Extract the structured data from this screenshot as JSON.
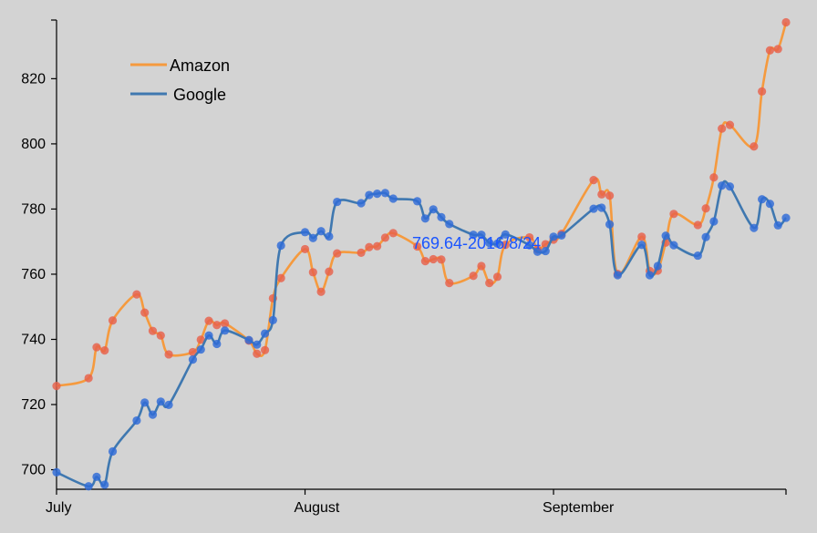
{
  "chart_data": {
    "type": "line",
    "x_unit": "date",
    "x_range": [
      "2016-07-01",
      "2016-09-30"
    ],
    "ylim": [
      694,
      838
    ],
    "y_ticks": [
      700,
      720,
      740,
      760,
      780,
      800,
      820
    ],
    "x_ticks": [
      {
        "label": "July",
        "date": "2016-07-01"
      },
      {
        "label": "August",
        "date": "2016-08-01"
      },
      {
        "label": "September",
        "date": "2016-09-01"
      },
      {
        "label": "",
        "date": "2016-09-30"
      }
    ],
    "grid": false,
    "legend_position": "top-left",
    "series": [
      {
        "name": "Amazon",
        "line_color": "#f59a3e",
        "point_color": "#e8604a",
        "points": [
          [
            "2016-07-01",
            725.7
          ],
          [
            "2016-07-05",
            728.1
          ],
          [
            "2016-07-06",
            737.6
          ],
          [
            "2016-07-07",
            736.6
          ],
          [
            "2016-07-08",
            745.8
          ],
          [
            "2016-07-11",
            753.8
          ],
          [
            "2016-07-12",
            748.2
          ],
          [
            "2016-07-13",
            742.6
          ],
          [
            "2016-07-14",
            741.2
          ],
          [
            "2016-07-15",
            735.4
          ],
          [
            "2016-07-18",
            736.1
          ],
          [
            "2016-07-19",
            739.9
          ],
          [
            "2016-07-20",
            745.7
          ],
          [
            "2016-07-21",
            744.4
          ],
          [
            "2016-07-22",
            744.9
          ],
          [
            "2016-07-25",
            739.6
          ],
          [
            "2016-07-26",
            735.6
          ],
          [
            "2016-07-27",
            736.7
          ],
          [
            "2016-07-28",
            752.6
          ],
          [
            "2016-07-29",
            758.8
          ],
          [
            "2016-08-01",
            767.7
          ],
          [
            "2016-08-02",
            760.6
          ],
          [
            "2016-08-03",
            754.6
          ],
          [
            "2016-08-04",
            760.8
          ],
          [
            "2016-08-05",
            766.4
          ],
          [
            "2016-08-08",
            766.6
          ],
          [
            "2016-08-09",
            768.3
          ],
          [
            "2016-08-10",
            768.6
          ],
          [
            "2016-08-11",
            771.2
          ],
          [
            "2016-08-12",
            772.6
          ],
          [
            "2016-08-15",
            768.5
          ],
          [
            "2016-08-16",
            764.0
          ],
          [
            "2016-08-17",
            764.6
          ],
          [
            "2016-08-18",
            764.5
          ],
          [
            "2016-08-19",
            757.3
          ],
          [
            "2016-08-22",
            759.5
          ],
          [
            "2016-08-23",
            762.5
          ],
          [
            "2016-08-24",
            757.3
          ],
          [
            "2016-08-25",
            759.2
          ],
          [
            "2016-08-26",
            769.0
          ],
          [
            "2016-08-29",
            771.3
          ],
          [
            "2016-08-30",
            767.6
          ],
          [
            "2016-08-31",
            769.2
          ],
          [
            "2016-09-01",
            770.6
          ],
          [
            "2016-09-02",
            772.4
          ],
          [
            "2016-09-06",
            788.9
          ],
          [
            "2016-09-07",
            784.5
          ],
          [
            "2016-09-08",
            784.1
          ],
          [
            "2016-09-09",
            760.1
          ],
          [
            "2016-09-12",
            771.5
          ],
          [
            "2016-09-13",
            761.0
          ],
          [
            "2016-09-14",
            761.1
          ],
          [
            "2016-09-15",
            769.7
          ],
          [
            "2016-09-16",
            778.5
          ],
          [
            "2016-09-19",
            775.1
          ],
          [
            "2016-09-20",
            780.2
          ],
          [
            "2016-09-21",
            789.7
          ],
          [
            "2016-09-22",
            804.7
          ],
          [
            "2016-09-23",
            805.8
          ],
          [
            "2016-09-26",
            799.2
          ],
          [
            "2016-09-27",
            816.1
          ],
          [
            "2016-09-28",
            828.7
          ],
          [
            "2016-09-29",
            829.1
          ],
          [
            "2016-09-30",
            837.3
          ]
        ]
      },
      {
        "name": "Google",
        "line_color": "#3f78b0",
        "point_color": "#2f6bd8",
        "points": [
          [
            "2016-07-01",
            699.2
          ],
          [
            "2016-07-05",
            694.9
          ],
          [
            "2016-07-06",
            697.8
          ],
          [
            "2016-07-07",
            695.4
          ],
          [
            "2016-07-08",
            705.6
          ],
          [
            "2016-07-11",
            715.1
          ],
          [
            "2016-07-12",
            720.6
          ],
          [
            "2016-07-13",
            716.9
          ],
          [
            "2016-07-14",
            720.9
          ],
          [
            "2016-07-15",
            719.9
          ],
          [
            "2016-07-18",
            733.8
          ],
          [
            "2016-07-19",
            736.9
          ],
          [
            "2016-07-20",
            741.2
          ],
          [
            "2016-07-21",
            738.6
          ],
          [
            "2016-07-22",
            742.7
          ],
          [
            "2016-07-25",
            739.8
          ],
          [
            "2016-07-26",
            738.4
          ],
          [
            "2016-07-27",
            741.8
          ],
          [
            "2016-07-28",
            745.9
          ],
          [
            "2016-07-29",
            768.8
          ],
          [
            "2016-08-01",
            772.9
          ],
          [
            "2016-08-02",
            771.1
          ],
          [
            "2016-08-03",
            773.2
          ],
          [
            "2016-08-04",
            771.6
          ],
          [
            "2016-08-05",
            782.2
          ],
          [
            "2016-08-08",
            781.8
          ],
          [
            "2016-08-09",
            784.3
          ],
          [
            "2016-08-10",
            784.7
          ],
          [
            "2016-08-11",
            784.9
          ],
          [
            "2016-08-12",
            783.2
          ],
          [
            "2016-08-15",
            782.4
          ],
          [
            "2016-08-16",
            777.1
          ],
          [
            "2016-08-17",
            779.9
          ],
          [
            "2016-08-18",
            777.5
          ],
          [
            "2016-08-19",
            775.4
          ],
          [
            "2016-08-22",
            772.1
          ],
          [
            "2016-08-23",
            772.1
          ],
          [
            "2016-08-24",
            769.6
          ],
          [
            "2016-08-25",
            769.4
          ],
          [
            "2016-08-26",
            772.2
          ],
          [
            "2016-08-29",
            768.9
          ],
          [
            "2016-08-30",
            766.9
          ],
          [
            "2016-08-31",
            767.1
          ],
          [
            "2016-09-01",
            771.5
          ],
          [
            "2016-09-02",
            771.9
          ],
          [
            "2016-09-06",
            780.1
          ],
          [
            "2016-09-07",
            780.4
          ],
          [
            "2016-09-08",
            775.3
          ],
          [
            "2016-09-09",
            759.7
          ],
          [
            "2016-09-12",
            769.0
          ],
          [
            "2016-09-13",
            759.7
          ],
          [
            "2016-09-14",
            762.5
          ],
          [
            "2016-09-15",
            771.8
          ],
          [
            "2016-09-16",
            768.9
          ],
          [
            "2016-09-19",
            765.7
          ],
          [
            "2016-09-20",
            771.4
          ],
          [
            "2016-09-21",
            776.2
          ],
          [
            "2016-09-22",
            787.2
          ],
          [
            "2016-09-23",
            786.9
          ],
          [
            "2016-09-26",
            774.2
          ],
          [
            "2016-09-27",
            783.0
          ],
          [
            "2016-09-28",
            781.6
          ],
          [
            "2016-09-29",
            775.0
          ],
          [
            "2016-09-30",
            777.3
          ]
        ]
      }
    ],
    "annotation": "769.64-2016/8/24"
  },
  "legend": [
    {
      "label": "Amazon",
      "color": "#f59a3e"
    },
    {
      "label": "Google",
      "color": "#3f78b0"
    }
  ]
}
